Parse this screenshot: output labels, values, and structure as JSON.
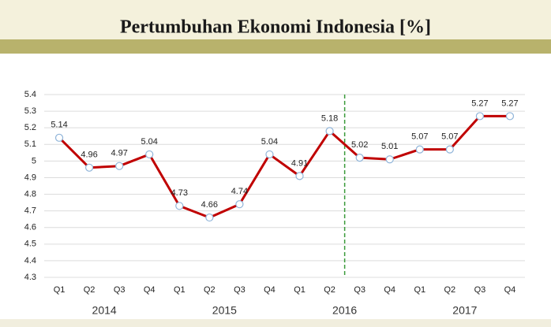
{
  "chart_data": {
    "type": "line",
    "title": "Pertumbuhan Ekonomi Indonesia [%]",
    "categories": [
      "Q1",
      "Q2",
      "Q3",
      "Q4",
      "Q1",
      "Q2",
      "Q3",
      "Q4",
      "Q1",
      "Q2",
      "Q3",
      "Q4",
      "Q1",
      "Q2",
      "Q3",
      "Q4"
    ],
    "category_groups": [
      "2014",
      "2015",
      "2016",
      "2017"
    ],
    "series": [
      {
        "name": "Pertumbuhan Ekonomi",
        "color": "#c00000",
        "values": [
          5.14,
          4.96,
          4.97,
          5.04,
          4.73,
          4.66,
          4.74,
          5.04,
          4.91,
          5.18,
          5.02,
          5.01,
          5.07,
          5.07,
          5.27,
          5.27
        ]
      }
    ],
    "ylim": [
      4.3,
      5.4
    ],
    "yticks": [
      4.3,
      4.4,
      4.5,
      4.6,
      4.7,
      4.8,
      4.9,
      5,
      5.1,
      5.2,
      5.3,
      5.4
    ],
    "grid": true
  }
}
